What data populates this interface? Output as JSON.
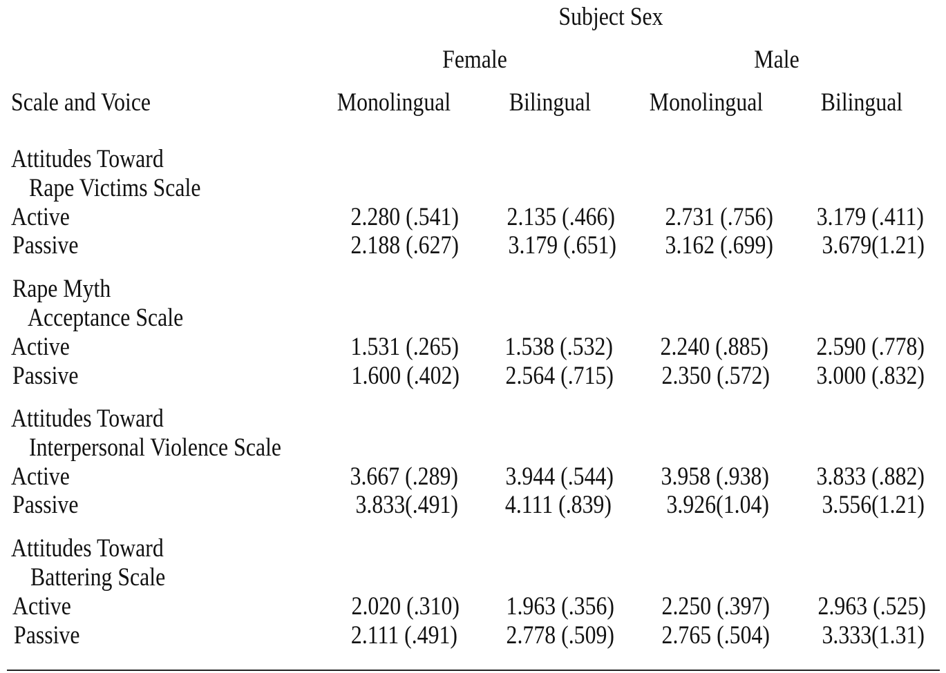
{
  "header": {
    "group_title": "Subject Sex",
    "sexes": [
      "Female",
      "Male"
    ],
    "row_header": "Scale and Voice",
    "columns": [
      "Monolingual",
      "Bilingual",
      "Monolingual",
      "Bilingual"
    ]
  },
  "sections": [
    {
      "title_line1": "Attitudes Toward",
      "title_line2": "Rape Victims Scale",
      "rows": [
        {
          "label": "Active",
          "values": [
            "2.280 (.541)",
            "2.135 (.466)",
            "2.731 (.756)",
            "3.179 (.411)"
          ]
        },
        {
          "label": "Passive",
          "values": [
            "2.188 (.627)",
            "3.179 (.651)",
            "3.162 (.699)",
            "3.679(1.21)"
          ]
        }
      ]
    },
    {
      "title_line1": "Rape Myth",
      "title_line2": "Acceptance Scale",
      "rows": [
        {
          "label": "Active",
          "values": [
            "1.531 (.265)",
            "1.538 (.532)",
            "2.240 (.885)",
            "2.590 (.778)"
          ]
        },
        {
          "label": "Passive",
          "values": [
            "1.600 (.402)",
            "2.564 (.715)",
            "2.350 (.572)",
            "3.000 (.832)"
          ]
        }
      ]
    },
    {
      "title_line1": "Attitudes Toward",
      "title_line2": "Interpersonal Violence Scale",
      "rows": [
        {
          "label": "Active",
          "values": [
            "3.667 (.289)",
            "3.944 (.544)",
            "3.958 (.938)",
            "3.833 (.882)"
          ]
        },
        {
          "label": "Passive",
          "values": [
            "3.833(.491)",
            "4.111 (.839)",
            "3.926(1.04)",
            "3.556(1.21)"
          ]
        }
      ]
    },
    {
      "title_line1": "Attitudes Toward",
      "title_line2": "Battering Scale",
      "rows": [
        {
          "label": "Active",
          "values": [
            "2.020 (.310)",
            "1.963 (.356)",
            "2.250 (.397)",
            "2.963 (.525)"
          ]
        },
        {
          "label": "Passive",
          "values": [
            "2.111 (.491)",
            "2.778 (.509)",
            "2.765 (.504)",
            "3.333(1.31)"
          ]
        }
      ]
    }
  ]
}
